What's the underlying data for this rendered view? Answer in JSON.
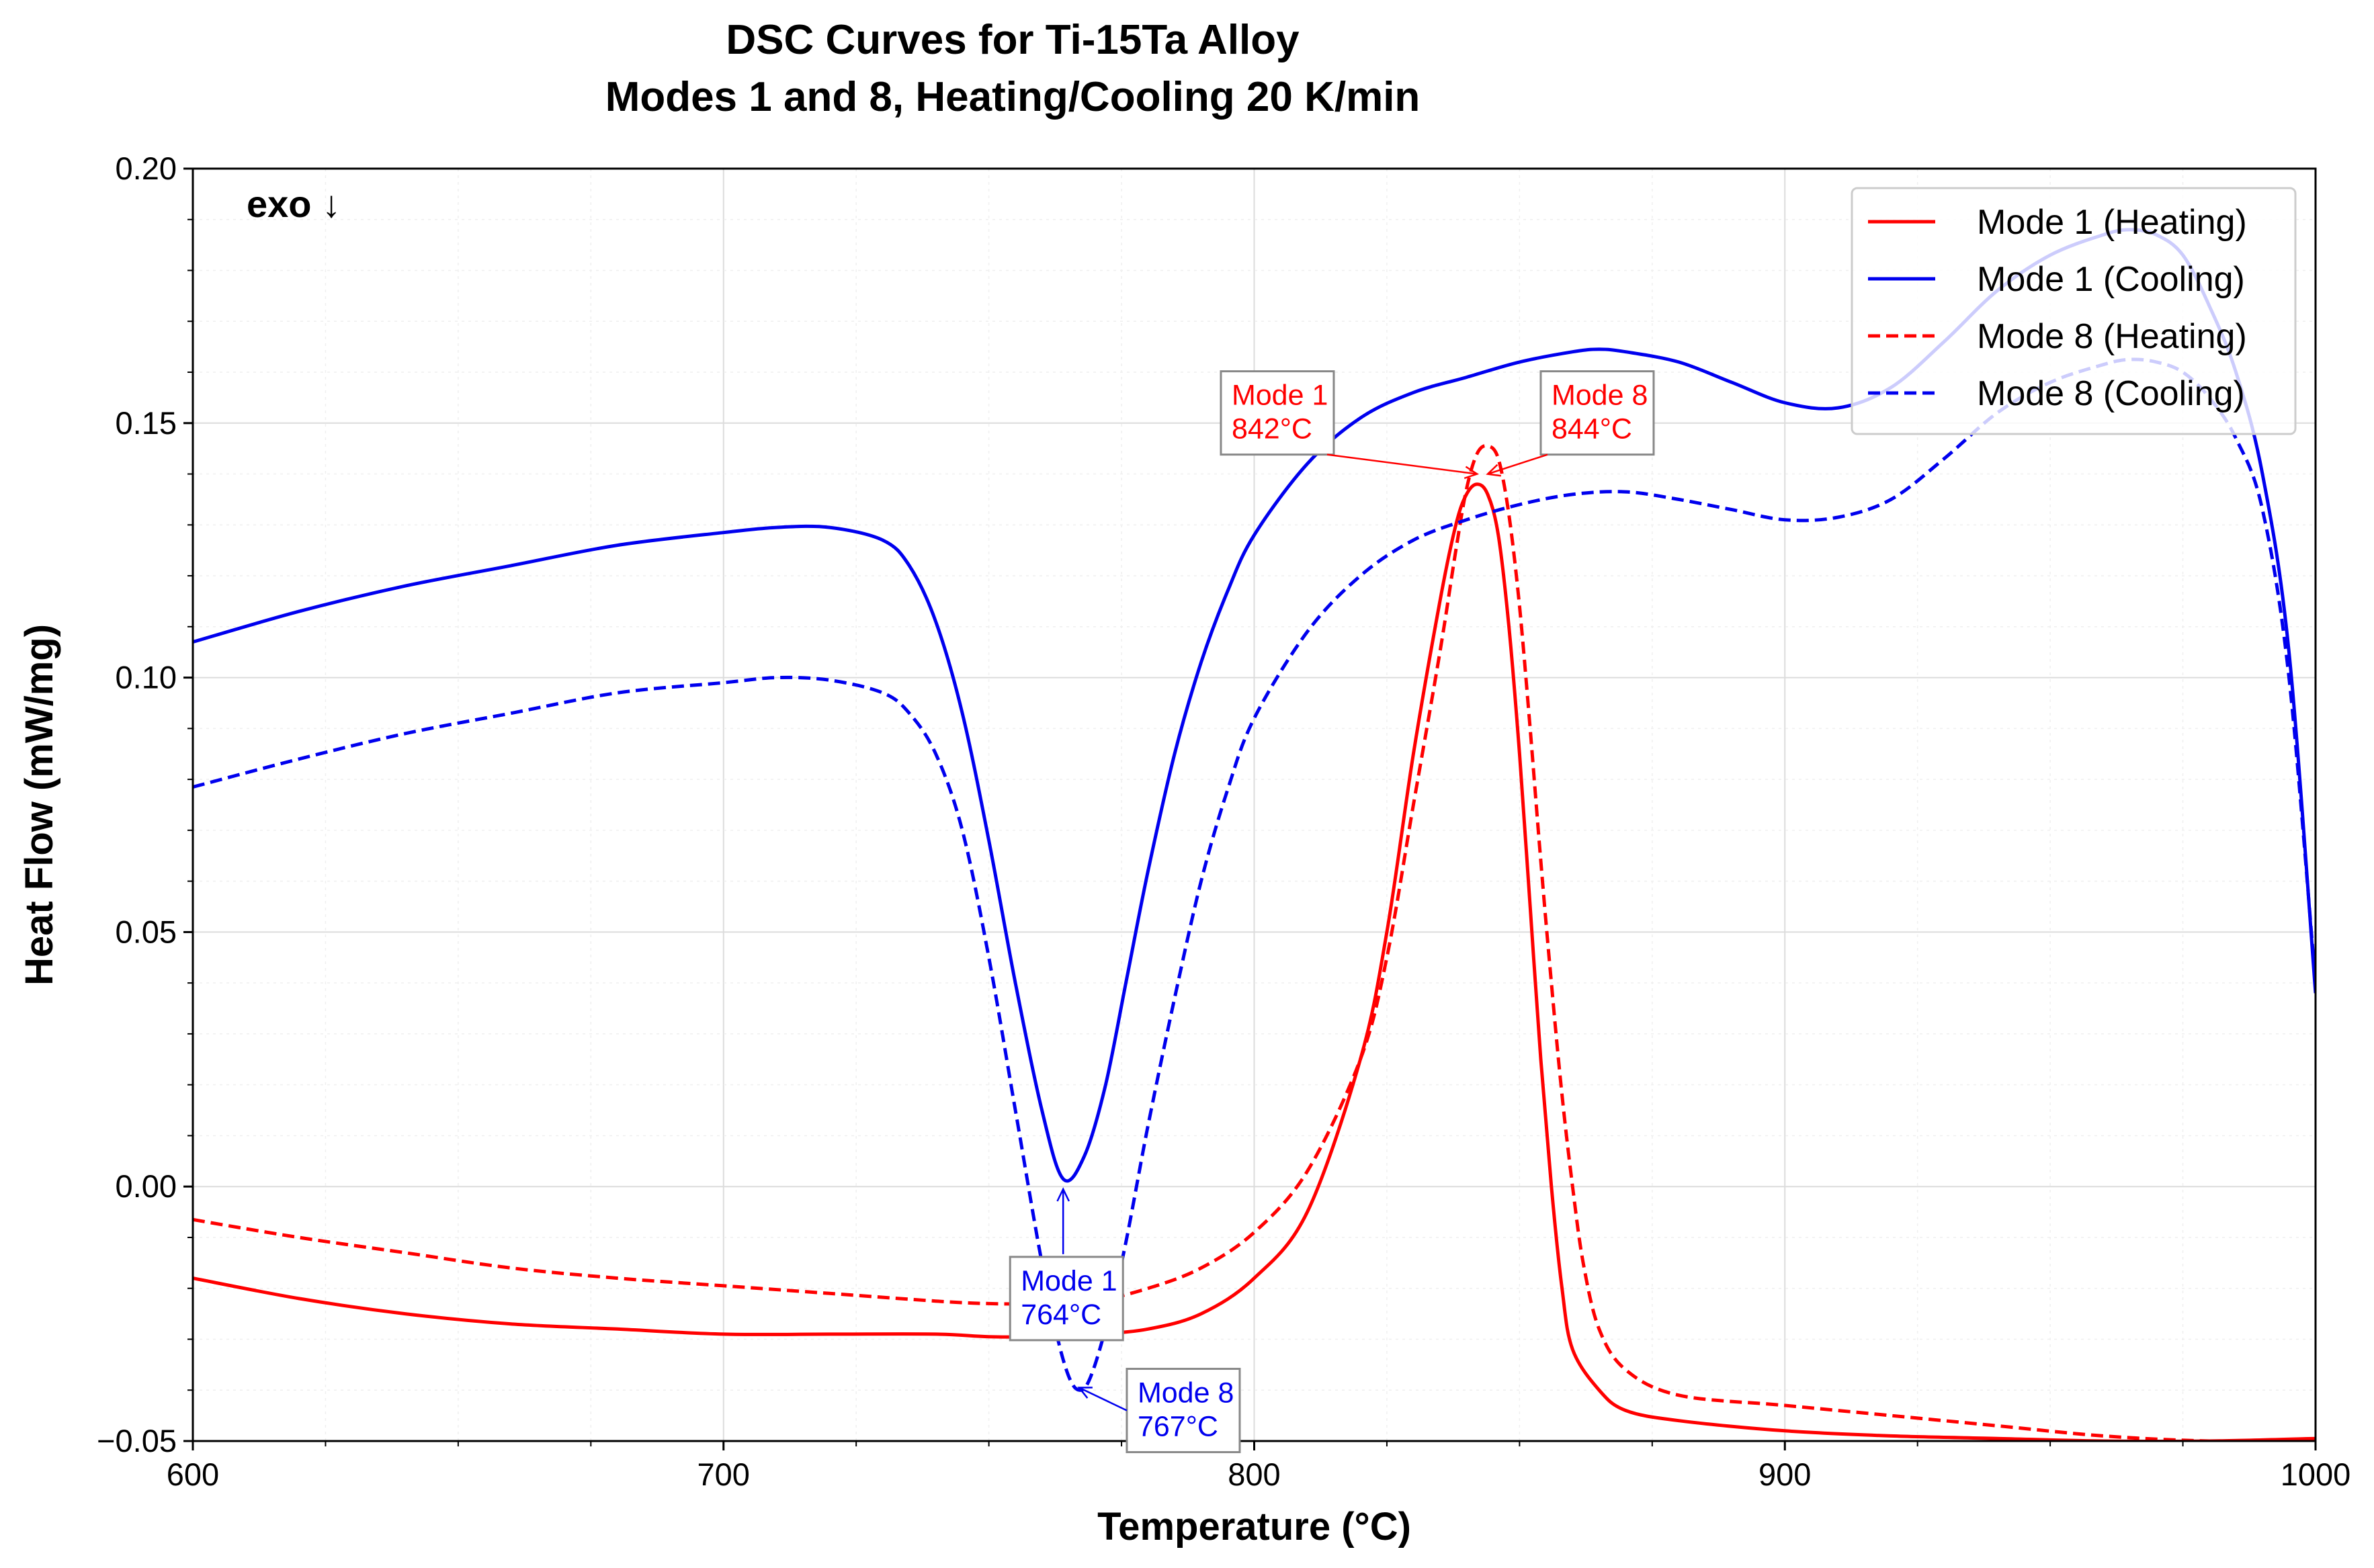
{
  "chart_data": {
    "type": "line",
    "title": "DSC Curves for Ti-15Ta Alloy",
    "subtitle": "Modes 1 and 8, Heating/Cooling 20 K/min",
    "xlabel": "Temperature (°C)",
    "ylabel": "Heat Flow (mW/mg)",
    "xlim": [
      600,
      1000
    ],
    "ylim": [
      -0.05,
      0.2
    ],
    "x_ticks": [
      600,
      700,
      800,
      900,
      1000
    ],
    "x_tick_labels": [
      "600",
      "700",
      "800",
      "900",
      "1000"
    ],
    "y_ticks": [
      -0.05,
      0.0,
      0.05,
      0.1,
      0.15,
      0.2
    ],
    "y_tick_labels": [
      "−0.05",
      "0.00",
      "0.05",
      "0.10",
      "0.15",
      "0.20"
    ],
    "grid": true,
    "legend_position": "top-right",
    "corner_note": "exo ↓",
    "series": [
      {
        "name": "Mode 1 (Heating)",
        "color": "#ff0000",
        "dash": "solid",
        "x": [
          600,
          620,
          640,
          660,
          680,
          700,
          720,
          740,
          750,
          760,
          770,
          780,
          790,
          800,
          810,
          820,
          825,
          830,
          835,
          838,
          840,
          842,
          844,
          846,
          848,
          850,
          852,
          854,
          856,
          858,
          860,
          865,
          870,
          880,
          900,
          920,
          940,
          960,
          980,
          1000
        ],
        "y": [
          -0.018,
          -0.022,
          -0.025,
          -0.027,
          -0.028,
          -0.029,
          -0.029,
          -0.029,
          -0.0295,
          -0.0295,
          -0.029,
          -0.028,
          -0.025,
          -0.018,
          -0.005,
          0.025,
          0.05,
          0.085,
          0.115,
          0.13,
          0.136,
          0.138,
          0.136,
          0.128,
          0.11,
          0.085,
          0.055,
          0.025,
          0.0,
          -0.02,
          -0.032,
          -0.04,
          -0.044,
          -0.046,
          -0.048,
          -0.049,
          -0.0495,
          -0.05,
          -0.05,
          -0.0495
        ]
      },
      {
        "name": "Mode 1 (Cooling)",
        "color": "#0000ee",
        "dash": "solid",
        "x": [
          600,
          620,
          640,
          660,
          680,
          700,
          710,
          720,
          730,
          735,
          740,
          745,
          750,
          755,
          760,
          764,
          768,
          772,
          776,
          780,
          785,
          790,
          795,
          800,
          810,
          820,
          830,
          840,
          850,
          860,
          865,
          870,
          880,
          890,
          900,
          910,
          920,
          930,
          940,
          950,
          960,
          965,
          970,
          975,
          980,
          985,
          990,
          995,
          1000
        ],
        "y": [
          0.107,
          0.113,
          0.118,
          0.122,
          0.126,
          0.1285,
          0.1295,
          0.1295,
          0.127,
          0.122,
          0.111,
          0.093,
          0.068,
          0.04,
          0.015,
          0.0015,
          0.006,
          0.02,
          0.041,
          0.062,
          0.085,
          0.103,
          0.117,
          0.128,
          0.142,
          0.151,
          0.156,
          0.159,
          0.162,
          0.164,
          0.1645,
          0.164,
          0.162,
          0.158,
          0.154,
          0.153,
          0.157,
          0.166,
          0.176,
          0.183,
          0.187,
          0.188,
          0.187,
          0.183,
          0.173,
          0.16,
          0.14,
          0.105,
          0.038
        ]
      },
      {
        "name": "Mode 8 (Heating)",
        "color": "#ff0000",
        "dash": "dashed",
        "x": [
          600,
          620,
          640,
          660,
          680,
          700,
          720,
          740,
          750,
          760,
          770,
          780,
          790,
          800,
          810,
          820,
          825,
          830,
          835,
          838,
          840,
          842,
          844,
          846,
          848,
          850,
          852,
          854,
          856,
          858,
          860,
          862,
          865,
          870,
          880,
          900,
          920,
          940,
          960,
          980,
          1000
        ],
        "y": [
          -0.0065,
          -0.01,
          -0.013,
          -0.016,
          -0.018,
          -0.0195,
          -0.021,
          -0.0225,
          -0.023,
          -0.023,
          -0.0225,
          -0.02,
          -0.016,
          -0.009,
          0.003,
          0.025,
          0.045,
          0.075,
          0.105,
          0.125,
          0.137,
          0.144,
          0.1455,
          0.143,
          0.132,
          0.114,
          0.09,
          0.064,
          0.04,
          0.018,
          0.0,
          -0.015,
          -0.028,
          -0.036,
          -0.041,
          -0.043,
          -0.045,
          -0.047,
          -0.049,
          -0.05,
          -0.05
        ]
      },
      {
        "name": "Mode 8 (Cooling)",
        "color": "#0000ee",
        "dash": "dashed",
        "x": [
          600,
          620,
          640,
          660,
          680,
          700,
          710,
          720,
          730,
          735,
          740,
          745,
          750,
          755,
          760,
          764,
          767,
          770,
          775,
          780,
          785,
          790,
          795,
          800,
          810,
          820,
          830,
          840,
          850,
          860,
          870,
          880,
          890,
          900,
          910,
          920,
          930,
          940,
          950,
          960,
          965,
          970,
          975,
          980,
          985,
          990,
          995,
          1000
        ],
        "y": [
          0.0785,
          0.084,
          0.089,
          0.093,
          0.097,
          0.099,
          0.1,
          0.0995,
          0.097,
          0.093,
          0.085,
          0.07,
          0.045,
          0.015,
          -0.015,
          -0.034,
          -0.04,
          -0.035,
          -0.015,
          0.012,
          0.037,
          0.06,
          0.078,
          0.092,
          0.109,
          0.12,
          0.127,
          0.131,
          0.134,
          0.136,
          0.1365,
          0.135,
          0.133,
          0.131,
          0.1315,
          0.135,
          0.143,
          0.152,
          0.158,
          0.1615,
          0.1625,
          0.162,
          0.16,
          0.155,
          0.147,
          0.133,
          0.1,
          0.04
        ]
      }
    ],
    "annotations": [
      {
        "lines": [
          "Mode 1",
          "842°C"
        ],
        "color": "#ff0000",
        "point": [
          842,
          0.14
        ],
        "text_at": [
          815,
          0.152
        ],
        "anchor": "end"
      },
      {
        "lines": [
          "Mode 8",
          "844°C"
        ],
        "color": "#ff0000",
        "point": [
          844,
          0.14
        ],
        "text_at": [
          854,
          0.152
        ],
        "anchor": "start"
      },
      {
        "lines": [
          "Mode 1",
          "764°C"
        ],
        "color": "#0000ee",
        "point": [
          764,
          -0.0005
        ],
        "text_at": [
          754,
          -0.022
        ],
        "anchor": "start"
      },
      {
        "lines": [
          "Mode 8",
          "767°C"
        ],
        "color": "#0000ee",
        "point": [
          767,
          -0.0395
        ],
        "text_at": [
          776,
          -0.044
        ],
        "anchor": "start"
      }
    ]
  }
}
